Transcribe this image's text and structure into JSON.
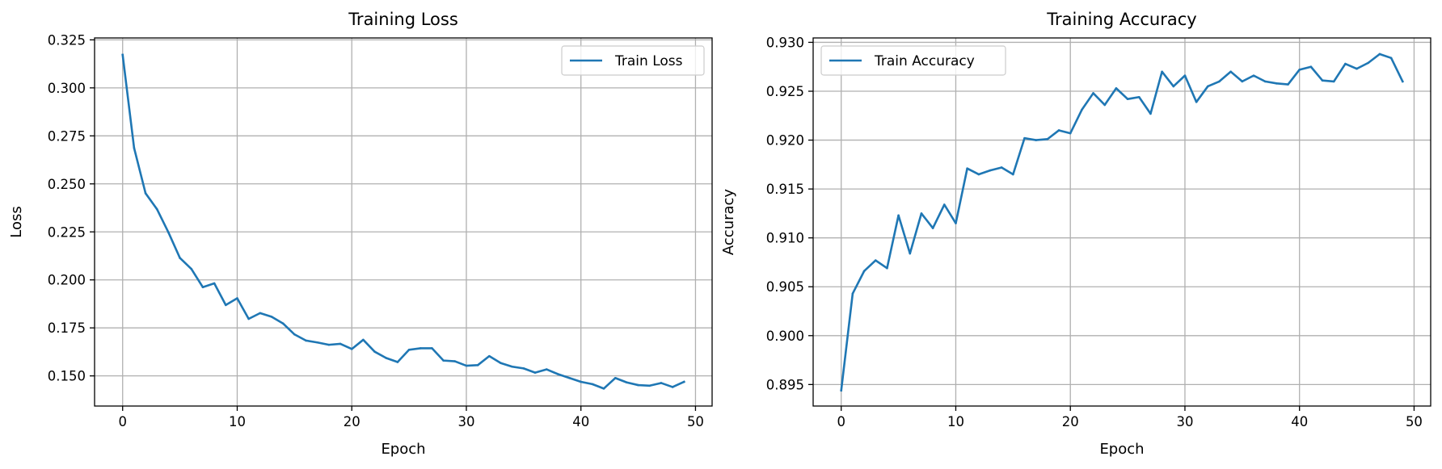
{
  "chart_data": [
    {
      "type": "line",
      "title": "Training Loss",
      "xlabel": "Epoch",
      "ylabel": "Loss",
      "xlim": [
        -2.45,
        51.45
      ],
      "ylim": [
        0.1343,
        0.326
      ],
      "xticks": [
        0,
        10,
        20,
        30,
        40,
        50
      ],
      "xtick_labels": [
        "0",
        "10",
        "20",
        "30",
        "40",
        "50"
      ],
      "yticks": [
        0.15,
        0.175,
        0.2,
        0.225,
        0.25,
        0.275,
        0.3,
        0.325
      ],
      "ytick_labels": [
        "0.150",
        "0.175",
        "0.200",
        "0.225",
        "0.250",
        "0.275",
        "0.300",
        "0.325"
      ],
      "grid": true,
      "legend_position": "top-right",
      "series": [
        {
          "name": "Train Loss",
          "color": "#1f77b4",
          "x": [
            0,
            1,
            2,
            3,
            4,
            5,
            6,
            7,
            8,
            9,
            10,
            11,
            12,
            13,
            14,
            15,
            16,
            17,
            18,
            19,
            20,
            21,
            22,
            23,
            24,
            25,
            26,
            27,
            28,
            29,
            30,
            31,
            32,
            33,
            34,
            35,
            36,
            37,
            38,
            39,
            40,
            41,
            42,
            43,
            44,
            45,
            46,
            47,
            48,
            49
          ],
          "values": [
            0.3172,
            0.2687,
            0.2451,
            0.2368,
            0.2247,
            0.2114,
            0.2057,
            0.1962,
            0.1982,
            0.1869,
            0.1904,
            0.1797,
            0.1827,
            0.1808,
            0.1773,
            0.1716,
            0.1684,
            0.1674,
            0.1662,
            0.1667,
            0.164,
            0.1688,
            0.1626,
            0.1593,
            0.1572,
            0.1636,
            0.1644,
            0.1644,
            0.158,
            0.1576,
            0.1553,
            0.1556,
            0.1603,
            0.1567,
            0.1548,
            0.1539,
            0.1517,
            0.1534,
            0.1509,
            0.1489,
            0.1469,
            0.1457,
            0.1434,
            0.1489,
            0.1466,
            0.1452,
            0.1449,
            0.1463,
            0.1442,
            0.1469
          ]
        }
      ]
    },
    {
      "type": "line",
      "title": "Training Accuracy",
      "xlabel": "Epoch",
      "ylabel": "Accuracy",
      "xlim": [
        -2.45,
        51.45
      ],
      "ylim": [
        0.8928,
        0.93045
      ],
      "xticks": [
        0,
        10,
        20,
        30,
        40,
        50
      ],
      "xtick_labels": [
        "0",
        "10",
        "20",
        "30",
        "40",
        "50"
      ],
      "yticks": [
        0.895,
        0.9,
        0.905,
        0.91,
        0.915,
        0.92,
        0.925,
        0.93
      ],
      "ytick_labels": [
        "0.895",
        "0.900",
        "0.905",
        "0.910",
        "0.915",
        "0.920",
        "0.925",
        "0.930"
      ],
      "grid": true,
      "legend_position": "top-left",
      "series": [
        {
          "name": "Train Accuracy",
          "color": "#1f77b4",
          "x": [
            0,
            1,
            2,
            3,
            4,
            5,
            6,
            7,
            8,
            9,
            10,
            11,
            12,
            13,
            14,
            15,
            16,
            17,
            18,
            19,
            20,
            21,
            22,
            23,
            24,
            25,
            26,
            27,
            28,
            29,
            30,
            31,
            32,
            33,
            34,
            35,
            36,
            37,
            38,
            39,
            40,
            41,
            42,
            43,
            44,
            45,
            46,
            47,
            48,
            49
          ],
          "values": [
            0.8944,
            0.9043,
            0.9066,
            0.9077,
            0.9069,
            0.9123,
            0.9084,
            0.9125,
            0.911,
            0.9134,
            0.9115,
            0.9171,
            0.9165,
            0.9169,
            0.9172,
            0.9165,
            0.9202,
            0.92,
            0.9201,
            0.921,
            0.9207,
            0.9231,
            0.9248,
            0.9236,
            0.9253,
            0.9242,
            0.9244,
            0.9227,
            0.927,
            0.9255,
            0.9266,
            0.9239,
            0.9255,
            0.926,
            0.927,
            0.926,
            0.9266,
            0.926,
            0.9258,
            0.9257,
            0.9272,
            0.9275,
            0.9261,
            0.926,
            0.9278,
            0.9273,
            0.9279,
            0.9288,
            0.9284,
            0.926
          ]
        }
      ]
    }
  ]
}
